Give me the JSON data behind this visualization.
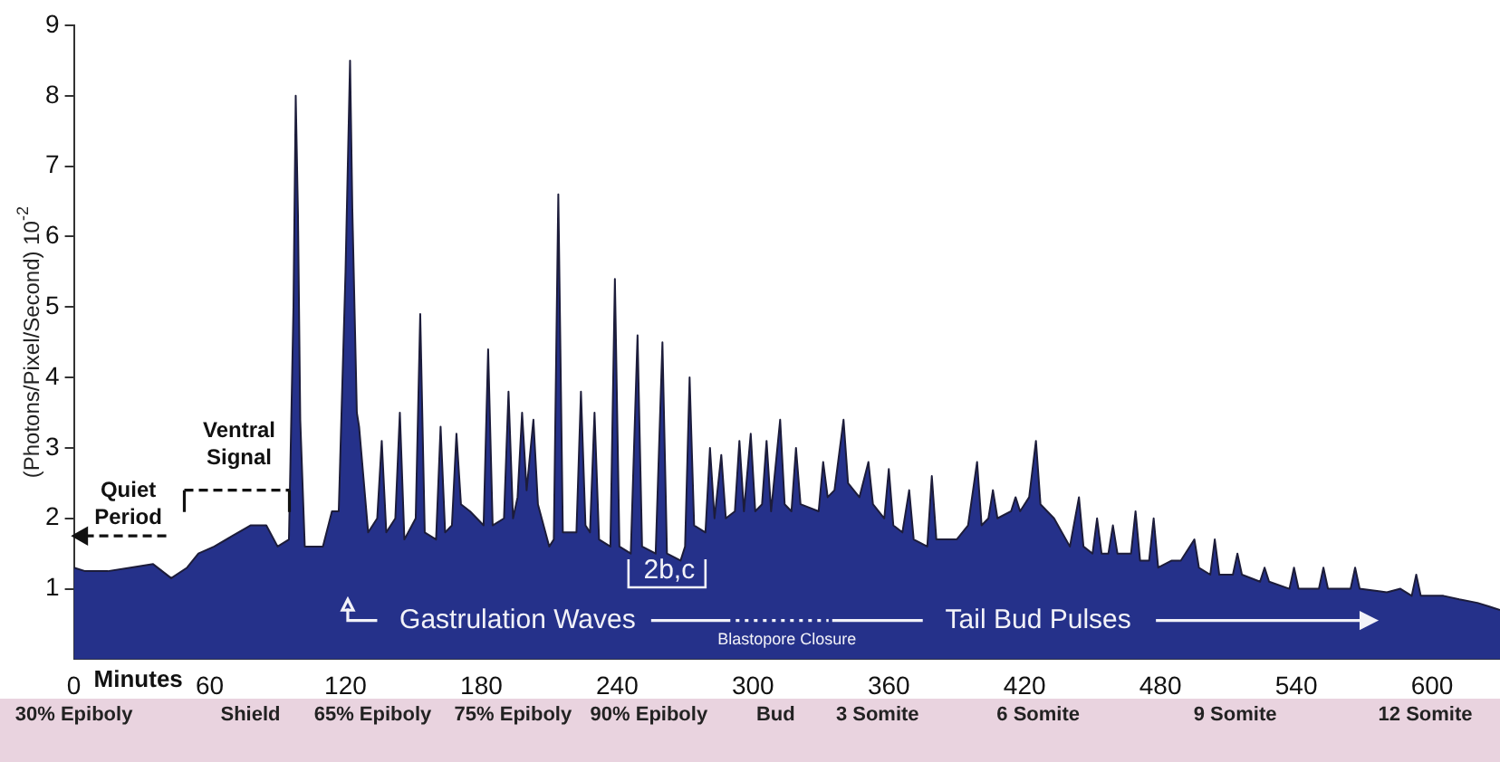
{
  "chart_data": {
    "type": "area",
    "xlabel": "Minutes",
    "ylabel": "(Photons/Pixel/Second) 10$^{-2}$",
    "x": [
      0,
      5,
      15,
      25,
      35,
      43,
      50,
      55,
      62,
      70,
      78,
      85,
      90,
      95,
      97,
      98,
      99,
      100,
      102,
      110,
      114,
      117,
      120,
      122,
      123,
      125,
      126,
      130,
      134,
      136,
      138,
      142,
      144,
      146,
      151,
      153,
      155,
      160,
      162,
      164,
      167,
      169,
      171,
      175,
      181,
      183,
      185,
      190,
      192,
      194,
      196,
      198,
      200,
      203,
      205,
      210,
      212,
      214,
      216,
      222,
      224,
      226,
      228,
      230,
      232,
      237,
      239,
      241,
      246,
      249,
      251,
      257,
      260,
      262,
      268,
      270,
      272,
      274,
      279,
      281,
      283,
      286,
      288,
      292,
      294,
      296,
      299,
      301,
      304,
      306,
      308,
      312,
      314,
      317,
      319,
      321,
      329,
      331,
      333,
      336,
      340,
      342,
      347,
      351,
      353,
      358,
      360,
      362,
      366,
      369,
      371,
      377,
      379,
      381,
      390,
      395,
      399,
      401,
      404,
      406,
      408,
      414,
      416,
      418,
      422,
      425,
      427,
      433,
      440,
      444,
      446,
      450,
      452,
      454,
      457,
      459,
      461,
      467,
      469,
      471,
      475,
      477,
      479,
      485,
      489,
      495,
      497,
      502,
      504,
      506,
      512,
      514,
      516,
      524,
      526,
      528,
      537,
      539,
      541,
      550,
      552,
      554,
      564,
      566,
      568,
      580,
      586,
      591,
      593,
      595,
      605,
      612,
      620,
      625,
      630
    ],
    "series": [
      {
        "color": "#25318a",
        "values": [
          1.3,
          1.25,
          1.25,
          1.3,
          1.35,
          1.15,
          1.3,
          1.5,
          1.6,
          1.75,
          1.9,
          1.9,
          1.6,
          1.7,
          5.0,
          8.0,
          6.3,
          3.4,
          1.6,
          1.6,
          2.1,
          2.1,
          5.5,
          8.5,
          6.4,
          3.5,
          3.3,
          1.8,
          2.0,
          3.1,
          1.8,
          2.0,
          3.5,
          1.7,
          2.0,
          4.9,
          1.8,
          1.7,
          3.3,
          1.8,
          1.9,
          3.2,
          2.2,
          2.1,
          1.9,
          4.4,
          1.9,
          2.0,
          3.8,
          2.0,
          2.3,
          3.5,
          2.4,
          3.4,
          2.2,
          1.6,
          1.7,
          6.6,
          1.8,
          1.8,
          3.8,
          1.9,
          1.8,
          3.5,
          1.7,
          1.6,
          5.4,
          1.6,
          1.5,
          4.6,
          1.6,
          1.5,
          4.5,
          1.5,
          1.4,
          1.6,
          4.0,
          1.9,
          1.8,
          3.0,
          2.0,
          2.9,
          2.0,
          2.1,
          3.1,
          2.1,
          3.2,
          2.1,
          2.2,
          3.1,
          2.1,
          3.4,
          2.2,
          2.1,
          3.0,
          2.2,
          2.1,
          2.8,
          2.3,
          2.4,
          3.4,
          2.5,
          2.3,
          2.8,
          2.2,
          2.0,
          2.7,
          1.9,
          1.8,
          2.4,
          1.7,
          1.6,
          2.6,
          1.7,
          1.7,
          1.9,
          2.8,
          1.9,
          2.0,
          2.4,
          2.0,
          2.1,
          2.3,
          2.1,
          2.3,
          3.1,
          2.2,
          2.0,
          1.6,
          2.3,
          1.6,
          1.5,
          2.0,
          1.5,
          1.5,
          1.9,
          1.5,
          1.5,
          2.1,
          1.4,
          1.4,
          2.0,
          1.3,
          1.4,
          1.4,
          1.7,
          1.3,
          1.2,
          1.7,
          1.2,
          1.2,
          1.5,
          1.2,
          1.1,
          1.3,
          1.1,
          1.0,
          1.3,
          1.0,
          1.0,
          1.3,
          1.0,
          1.0,
          1.3,
          1.0,
          0.95,
          1.0,
          0.9,
          1.2,
          0.9,
          0.9,
          0.85,
          0.8,
          0.75,
          0.7
        ]
      }
    ],
    "xlim": [
      0,
      630
    ],
    "xticks": [
      0,
      60,
      120,
      180,
      240,
      300,
      360,
      420,
      480,
      540,
      600
    ],
    "ylim": [
      0,
      9
    ],
    "yticks": [
      1,
      2,
      3,
      4,
      5,
      6,
      7,
      8,
      9
    ],
    "annotations": [
      "Quiet Period",
      "Ventral Signal",
      "2b,c",
      "Gastrulation Waves",
      "Blastopore Closure",
      "Tail Bud Pulses",
      "30% Epiboly",
      "Shield",
      "65% Epiboly",
      "75% Epiboly",
      "90% Epiboly",
      "Bud",
      "3 Somite",
      "6 Somite",
      "9 Somite",
      "12 Somite"
    ]
  }
}
